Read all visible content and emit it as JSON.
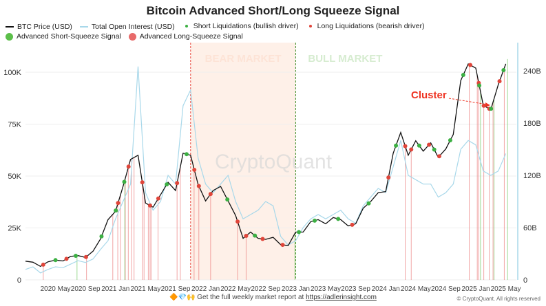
{
  "chart_data": {
    "type": "line",
    "title": "Bitcoin Advanced Short/Long Squeeze Signal",
    "legend": [
      {
        "name": "BTC Price (USD)",
        "color": "#111111",
        "marker": "line"
      },
      {
        "name": "Total Open Interest (USD)",
        "color": "#a8d8ea",
        "marker": "line"
      },
      {
        "name": "Short Liquidations (bullish driver)",
        "color": "#3cb043",
        "marker": "small-dot"
      },
      {
        "name": "Long Liquidations (bearish driver)",
        "color": "#e0453a",
        "marker": "small-dot"
      },
      {
        "name": "Advanced Short-Squeeze Signal",
        "color": "#5cbf4a",
        "marker": "big-dot"
      },
      {
        "name": "Advanced Long-Squeeze Signal",
        "color": "#e86a6a",
        "marker": "big-dot"
      }
    ],
    "legend_position": "top",
    "x_ticks": [
      "2020 May",
      "2020 Sep",
      "2021 Jan",
      "2021 May",
      "2021 Sep",
      "2022 Jan",
      "2022 May",
      "2022 Sep",
      "2023 Jan",
      "2023 May",
      "2023 Sep",
      "2024 Jan",
      "2024 May",
      "2024 Sep",
      "2025 Jan",
      "2025 May"
    ],
    "x_tick_dates": [
      "2020-05",
      "2020-09",
      "2021-01",
      "2021-05",
      "2021-09",
      "2022-01",
      "2022-05",
      "2022-09",
      "2023-01",
      "2023-05",
      "2023-09",
      "2024-01",
      "2024-05",
      "2024-09",
      "2025-01",
      "2025-05"
    ],
    "left_axis": {
      "ticks": [
        0,
        25000,
        50000,
        75000,
        100000
      ],
      "tick_labels": [
        "0",
        "25K",
        "50K",
        "75K",
        "100K"
      ],
      "range": [
        0,
        100000
      ]
    },
    "right_axis": {
      "ticks": [
        0,
        60,
        120,
        180,
        240
      ],
      "tick_labels": [
        "0",
        "60B",
        "120B",
        "180B",
        "240B"
      ],
      "range": [
        0,
        240
      ]
    },
    "grid": true,
    "dates": [
      "2020-01",
      "2020-02",
      "2020-03",
      "2020-04",
      "2020-05",
      "2020-06",
      "2020-07",
      "2020-08",
      "2020-09",
      "2020-10",
      "2020-11",
      "2020-12",
      "2021-01",
      "2021-02",
      "2021-03",
      "2021-04",
      "2021-05",
      "2021-06",
      "2021-07",
      "2021-08",
      "2021-09",
      "2021-10",
      "2021-11",
      "2021-12",
      "2022-01",
      "2022-02",
      "2022-03",
      "2022-04",
      "2022-05",
      "2022-06",
      "2022-07",
      "2022-08",
      "2022-09",
      "2022-10",
      "2022-11",
      "2022-12",
      "2023-01",
      "2023-02",
      "2023-03",
      "2023-04",
      "2023-05",
      "2023-06",
      "2023-07",
      "2023-08",
      "2023-09",
      "2023-10",
      "2023-11",
      "2023-12",
      "2024-01",
      "2024-02",
      "2024-03",
      "2024-04",
      "2024-05",
      "2024-06",
      "2024-07",
      "2024-08",
      "2024-09",
      "2024-10",
      "2024-11",
      "2024-12",
      "2025-01",
      "2025-02",
      "2025-03",
      "2025-04",
      "2025-05"
    ],
    "series": [
      {
        "name": "BTC Price (USD)",
        "axis": "left",
        "values": [
          9000,
          8500,
          6500,
          8700,
          9500,
          9100,
          11300,
          11700,
          10800,
          13800,
          19700,
          29000,
          33000,
          45000,
          58000,
          60000,
          37000,
          35000,
          41000,
          47000,
          43000,
          61000,
          60000,
          46000,
          38000,
          43000,
          45000,
          38000,
          31000,
          20000,
          23000,
          20000,
          19500,
          20500,
          17000,
          16500,
          23000,
          23000,
          28000,
          29000,
          27000,
          30000,
          29000,
          26000,
          27000,
          34500,
          37700,
          42000,
          42500,
          61000,
          71000,
          60000,
          67000,
          62000,
          66000,
          59000,
          63000,
          70000,
          96000,
          104000,
          102000,
          84000,
          82000,
          94000,
          104000
        ]
      },
      {
        "name": "Total Open Interest (USD)",
        "axis": "right",
        "unit": "B",
        "values": [
          12,
          15,
          8,
          12,
          15,
          14,
          18,
          22,
          20,
          24,
          35,
          45,
          70,
          90,
          110,
          245,
          100,
          80,
          90,
          120,
          110,
          200,
          218,
          140,
          110,
          100,
          110,
          120,
          90,
          70,
          75,
          80,
          90,
          85,
          50,
          40,
          45,
          60,
          70,
          75,
          70,
          75,
          80,
          70,
          65,
          85,
          95,
          105,
          100,
          130,
          160,
          120,
          115,
          110,
          110,
          95,
          100,
          110,
          150,
          160,
          155,
          125,
          120,
          125,
          145
        ]
      }
    ],
    "long_squeeze_signals": [
      "2020-03-12",
      "2020-09-05",
      "2020-12-20",
      "2021-01-10",
      "2021-01-21",
      "2021-02-10",
      "2021-02-22",
      "2021-03-05",
      "2021-03-15",
      "2021-04-18",
      "2021-04-25",
      "2021-05-12",
      "2021-05-19",
      "2021-05-23",
      "2021-06-21",
      "2021-09-07",
      "2021-09-20",
      "2021-11-15",
      "2021-12-04",
      "2022-01-21",
      "2022-05-09",
      "2022-06-13",
      "2024-03-19",
      "2024-04-13",
      "2024-12-05",
      "2025-01-07",
      "2025-01-13",
      "2025-02-03",
      "2025-02-25",
      "2025-03-10",
      "2025-04-25"
    ],
    "short_squeeze_signals": [
      "2020-07-27",
      "2021-02-08",
      "2022-12-28",
      "2025-01-20",
      "2025-03-14",
      "2025-05-08"
    ],
    "short_liquidations": [
      "2020-05-01",
      "2020-07-22",
      "2020-11-05",
      "2021-01-02",
      "2021-02-06",
      "2021-07-26",
      "2021-10-15",
      "2022-03-28",
      "2022-07-18",
      "2023-01-14",
      "2023-03-17",
      "2023-06-21",
      "2023-10-23",
      "2024-02-12",
      "2024-05-15",
      "2024-07-15",
      "2024-09-19",
      "2024-11-11",
      "2025-01-15",
      "2025-03-02",
      "2025-04-22"
    ],
    "long_liquidations": [
      "2020-03-12",
      "2020-06-15",
      "2020-09-03",
      "2021-01-11",
      "2021-02-23",
      "2021-04-18",
      "2021-05-19",
      "2021-06-22",
      "2021-09-07",
      "2021-11-16",
      "2021-12-04",
      "2022-01-21",
      "2022-05-09",
      "2022-06-13",
      "2022-08-19",
      "2022-11-09",
      "2023-08-17",
      "2024-01-12",
      "2024-03-19",
      "2024-04-13",
      "2024-06-24",
      "2024-08-05",
      "2024-12-09",
      "2025-01-13",
      "2025-02-03",
      "2025-02-25",
      "2025-04-06"
    ],
    "regions": [
      {
        "label": "BEAR MARKET",
        "start": "2021-11",
        "end": "2023-01",
        "color": "#fde3d6",
        "line_color": "#e8443a"
      },
      {
        "label": "BULL MARKET",
        "start": "2023-01",
        "end": "2025-05",
        "color": "#d6ecd0",
        "line_color": "#3f8f2a"
      }
    ],
    "annotations": [
      {
        "text": "Cluster",
        "color": "#ee3322",
        "points_to": "2025-01"
      }
    ],
    "watermark": "CryptoQuant"
  },
  "footer": {
    "emoji": "🔶💎🙌",
    "text": "Get the full weekly market report at ",
    "link": "https://adlerinsight.com",
    "copyright": "© CryptoQuant. All rights reserved"
  }
}
